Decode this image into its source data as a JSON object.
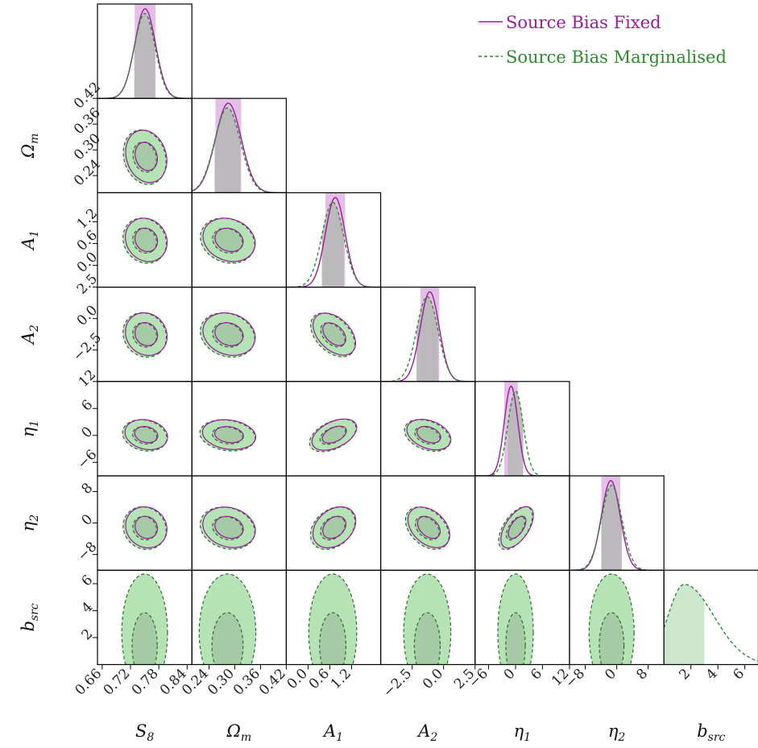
{
  "chart_data": {
    "type": "corner",
    "parameters": [
      {
        "key": "S8",
        "label": "S",
        "sub": "8",
        "range": [
          0.65,
          0.85
        ],
        "ticks": [
          "0.66",
          "0.72",
          "0.78",
          "0.84"
        ],
        "tick_values": [
          0.66,
          0.72,
          0.78,
          0.84
        ]
      },
      {
        "key": "Om",
        "label": "Ω",
        "sub": "m",
        "range": [
          0.2,
          0.42
        ],
        "ticks": [
          "0.24",
          "0.30",
          "0.36",
          "0.42"
        ],
        "tick_values": [
          0.24,
          0.3,
          0.36,
          0.42
        ]
      },
      {
        "key": "A1",
        "label": "A",
        "sub": "1",
        "range": [
          -0.6,
          2.0
        ],
        "ticks": [
          "0.0",
          "0.6",
          "1.2"
        ],
        "tick_values": [
          0.0,
          0.6,
          1.2
        ]
      },
      {
        "key": "A2",
        "label": "A",
        "sub": "2",
        "range": [
          -5.0,
          2.5
        ],
        "ticks": [
          "−2.5",
          "0.0",
          "2.5"
        ],
        "tick_values": [
          -2.5,
          0.0,
          2.5
        ]
      },
      {
        "key": "eta1",
        "label": "η",
        "sub": "1",
        "range": [
          -9.0,
          12.0
        ],
        "ticks": [
          "−6",
          "0",
          "6",
          "12"
        ],
        "tick_values": [
          -6,
          0,
          6,
          12
        ]
      },
      {
        "key": "eta2",
        "label": "η",
        "sub": "2",
        "range": [
          -12.0,
          12.0
        ],
        "ticks": [
          "−8",
          "0",
          "8"
        ],
        "tick_values": [
          -8,
          0,
          8
        ]
      },
      {
        "key": "bsrc",
        "label": "b",
        "sub": "src",
        "range": [
          0.0,
          7.0
        ],
        "ticks": [
          "2",
          "4",
          "6"
        ],
        "tick_values": [
          2,
          4,
          6
        ]
      }
    ],
    "series": [
      {
        "name": "Source Bias Fixed",
        "color": "#9b1b9e",
        "linestyle": "solid",
        "means": {
          "S8": 0.751,
          "Om": 0.285,
          "A1": 0.75,
          "A2": -1.1,
          "eta1": -1.0,
          "eta2": -1.5
        },
        "sigmas": {
          "S8": 0.022,
          "Om": 0.03,
          "A1": 0.27,
          "A2": 0.75,
          "eta1": 1.5,
          "eta2": 2.4
        }
      },
      {
        "name": "Source Bias Marginalised",
        "color": "#2e8b2e",
        "linestyle": "dashed",
        "means": {
          "S8": 0.75,
          "Om": 0.283,
          "A1": 0.68,
          "A2": -1.3,
          "eta1": 0.0,
          "eta2": -1.3,
          "bsrc": 1.5
        },
        "sigmas": {
          "S8": 0.022,
          "Om": 0.03,
          "A1": 0.3,
          "A2": 0.85,
          "eta1": 1.7,
          "eta2": 2.6,
          "bsrc": 1.6
        }
      }
    ],
    "legend_position": "top-right",
    "fill_color": "#b5e3b5",
    "shade_color": "#b8b8b8",
    "grid": false
  }
}
